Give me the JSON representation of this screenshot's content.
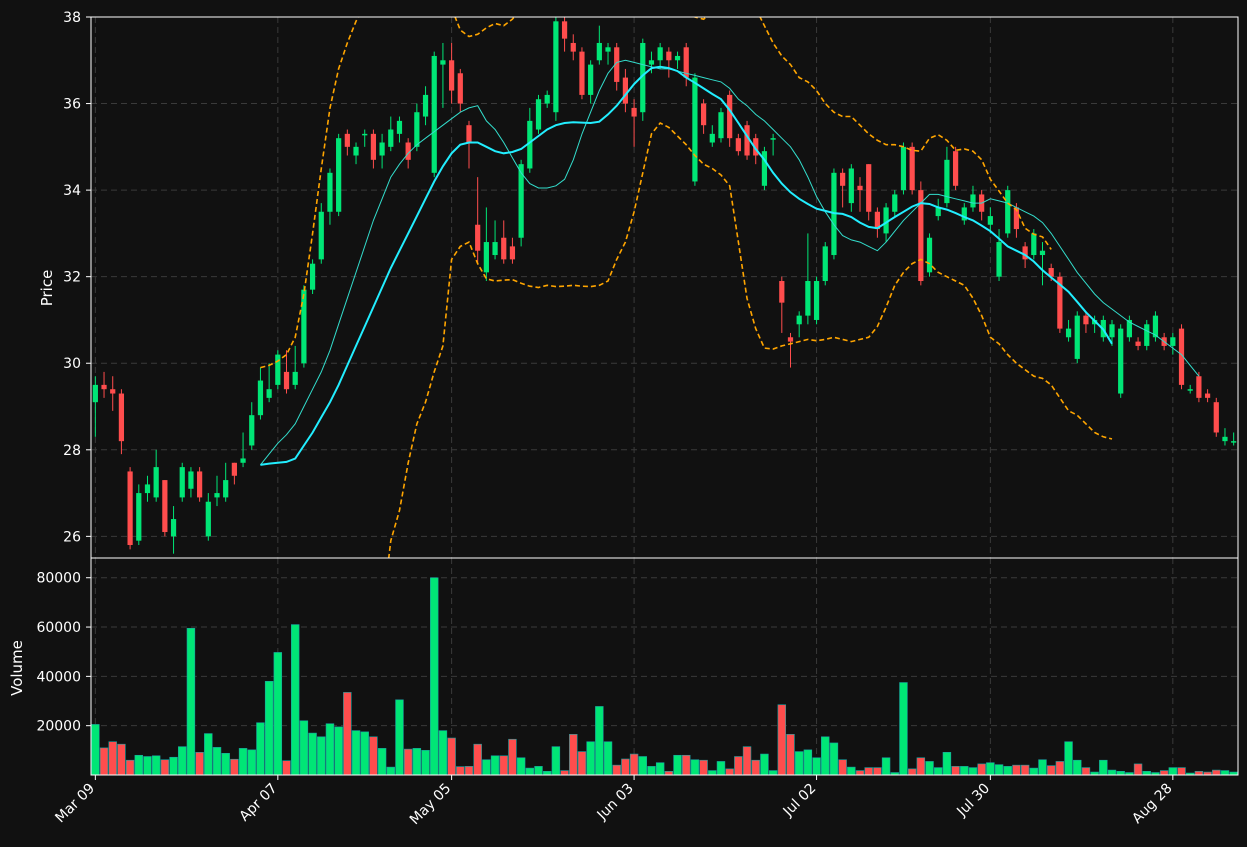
{
  "chart_data": {
    "type": "candlestick",
    "price_panel": {
      "ylabel": "Price",
      "ylim": [
        25.5,
        38.0
      ],
      "yticks": [
        "26",
        "28",
        "30",
        "32",
        "34",
        "36",
        "38"
      ],
      "grid": true
    },
    "volume_panel": {
      "ylabel": "Volume",
      "ylim": [
        0,
        88000
      ],
      "yticks": [
        "20000",
        "40000",
        "60000",
        "80000"
      ],
      "grid": true
    },
    "x_tick_labels": [
      "Mar 09",
      "Apr 07",
      "May 05",
      "Jun 03",
      "Jul 02",
      "Jul 30",
      "Aug 28"
    ],
    "x_tick_positions": [
      0,
      21,
      41,
      62,
      83,
      103,
      124
    ],
    "n_bars": 132,
    "colors": {
      "up": "#00e676",
      "down": "#ff4d4d",
      "sma_fast": "#33ddcc",
      "sma_slow": "#22eeff",
      "bands": "#ffa500",
      "grid": "#3a3a3a",
      "axis": "#ffffff",
      "background": "#111111"
    },
    "candles": [
      [
        29.1,
        29.5,
        29.7,
        28.3,
        20500
      ],
      [
        29.5,
        29.4,
        29.8,
        29.2,
        11000
      ],
      [
        29.4,
        29.3,
        29.7,
        28.9,
        13500
      ],
      [
        29.3,
        28.2,
        29.4,
        27.9,
        12500
      ],
      [
        27.5,
        25.8,
        27.6,
        25.7,
        6000
      ],
      [
        25.9,
        27.0,
        27.2,
        25.8,
        8000
      ],
      [
        27.0,
        27.2,
        27.4,
        26.8,
        7500
      ],
      [
        26.9,
        27.6,
        28.0,
        26.8,
        7800
      ],
      [
        27.3,
        26.1,
        27.3,
        26.0,
        6200
      ],
      [
        26.0,
        26.4,
        26.7,
        25.6,
        7200
      ],
      [
        26.9,
        27.6,
        27.7,
        26.8,
        11500
      ],
      [
        27.1,
        27.5,
        27.6,
        26.9,
        59500
      ],
      [
        27.5,
        26.9,
        27.6,
        26.8,
        9200
      ],
      [
        26.0,
        26.8,
        27.0,
        25.9,
        16800
      ],
      [
        26.9,
        27.0,
        27.4,
        26.7,
        11200
      ],
      [
        26.9,
        27.3,
        27.7,
        26.8,
        8800
      ],
      [
        27.7,
        27.4,
        27.7,
        27.2,
        6400
      ],
      [
        27.7,
        27.8,
        28.4,
        27.6,
        10800
      ],
      [
        28.1,
        28.8,
        29.1,
        28.0,
        10200
      ],
      [
        28.8,
        29.6,
        29.9,
        28.7,
        21200
      ],
      [
        29.2,
        29.4,
        30.0,
        29.1,
        38000
      ],
      [
        29.5,
        30.2,
        30.3,
        29.4,
        49700
      ],
      [
        29.8,
        29.4,
        30.3,
        29.3,
        5800
      ],
      [
        29.5,
        29.8,
        30.4,
        29.4,
        61000
      ],
      [
        30.0,
        31.7,
        31.8,
        29.9,
        22000
      ],
      [
        31.7,
        32.3,
        32.4,
        31.6,
        17000
      ],
      [
        32.4,
        33.5,
        33.7,
        32.3,
        15500
      ],
      [
        33.5,
        34.4,
        34.5,
        33.2,
        20800
      ],
      [
        33.5,
        35.2,
        35.3,
        33.4,
        19500
      ],
      [
        35.3,
        35.0,
        35.4,
        34.8,
        33500
      ],
      [
        34.8,
        35.0,
        35.1,
        34.6,
        18000
      ],
      [
        35.3,
        35.3,
        35.4,
        35.0,
        17500
      ],
      [
        35.3,
        34.7,
        35.4,
        34.5,
        15500
      ],
      [
        34.8,
        35.1,
        35.3,
        34.5,
        10800
      ],
      [
        35.0,
        35.4,
        35.7,
        34.9,
        3200
      ],
      [
        35.3,
        35.6,
        35.7,
        35.1,
        30500
      ],
      [
        35.1,
        34.7,
        35.2,
        34.5,
        10500
      ],
      [
        35.0,
        35.8,
        36.0,
        34.9,
        10800
      ],
      [
        35.7,
        36.2,
        36.4,
        35.5,
        10000
      ],
      [
        34.4,
        37.1,
        37.2,
        34.3,
        80000
      ],
      [
        36.9,
        37.0,
        37.4,
        35.9,
        18000
      ],
      [
        37.0,
        36.3,
        37.4,
        36.0,
        15000
      ],
      [
        36.7,
        36.0,
        36.8,
        35.8,
        3400
      ],
      [
        35.5,
        35.1,
        35.6,
        34.5,
        3500
      ],
      [
        33.2,
        32.6,
        34.3,
        32.3,
        12500
      ],
      [
        32.1,
        32.8,
        33.6,
        31.9,
        6200
      ],
      [
        32.5,
        32.8,
        33.3,
        32.4,
        7800
      ],
      [
        32.9,
        32.4,
        33.3,
        32.3,
        7800
      ],
      [
        32.7,
        32.4,
        32.9,
        32.3,
        14500
      ],
      [
        32.9,
        34.6,
        34.7,
        32.7,
        7000
      ],
      [
        34.5,
        35.6,
        35.9,
        34.4,
        2800
      ],
      [
        35.4,
        36.1,
        36.2,
        35.3,
        3500
      ],
      [
        36.0,
        36.2,
        36.3,
        35.9,
        1500
      ],
      [
        35.8,
        37.9,
        38.0,
        35.6,
        11500
      ],
      [
        37.9,
        37.5,
        38.0,
        37.2,
        1800
      ],
      [
        37.4,
        37.2,
        37.6,
        37.0,
        16500
      ],
      [
        37.2,
        36.2,
        37.3,
        36.1,
        9500
      ],
      [
        36.2,
        36.9,
        37.0,
        36.0,
        13500
      ],
      [
        37.0,
        37.4,
        37.8,
        36.9,
        27800
      ],
      [
        37.2,
        37.3,
        37.4,
        36.9,
        13500
      ],
      [
        37.3,
        36.5,
        37.4,
        36.3,
        4000
      ],
      [
        36.6,
        36.0,
        36.8,
        35.8,
        6500
      ],
      [
        35.9,
        35.7,
        36.1,
        35.0,
        8500
      ],
      [
        35.8,
        37.4,
        37.5,
        35.6,
        7500
      ],
      [
        36.9,
        37.0,
        37.2,
        36.7,
        3500
      ],
      [
        37.0,
        37.3,
        37.4,
        36.8,
        5000
      ],
      [
        37.2,
        37.0,
        37.3,
        36.6,
        1500
      ],
      [
        37.0,
        37.1,
        37.2,
        36.8,
        8000
      ],
      [
        37.3,
        36.6,
        37.4,
        36.4,
        8000
      ],
      [
        34.2,
        36.6,
        36.7,
        34.1,
        6200
      ],
      [
        36.0,
        35.5,
        36.1,
        35.3,
        6000
      ],
      [
        35.1,
        35.3,
        35.5,
        35.0,
        1800
      ],
      [
        35.2,
        35.8,
        35.9,
        35.1,
        5500
      ],
      [
        36.2,
        35.2,
        36.3,
        35.0,
        2500
      ],
      [
        35.2,
        34.9,
        35.3,
        34.8,
        7500
      ],
      [
        35.5,
        34.8,
        35.6,
        34.7,
        11500
      ],
      [
        35.2,
        34.8,
        35.3,
        34.6,
        6000
      ],
      [
        34.1,
        34.9,
        35.0,
        34.0,
        8500
      ],
      [
        35.2,
        35.2,
        35.3,
        34.8,
        1800
      ],
      [
        31.9,
        31.4,
        32.0,
        30.7,
        28500
      ],
      [
        30.6,
        30.5,
        30.7,
        29.9,
        16500
      ],
      [
        30.9,
        31.1,
        31.2,
        30.6,
        9500
      ],
      [
        31.1,
        31.9,
        33.0,
        30.9,
        10200
      ],
      [
        31.0,
        31.9,
        32.0,
        30.9,
        7000
      ],
      [
        31.9,
        32.7,
        32.8,
        31.8,
        15500
      ],
      [
        32.5,
        34.4,
        34.5,
        32.4,
        13000
      ],
      [
        34.4,
        34.1,
        34.5,
        33.6,
        6200
      ],
      [
        33.7,
        34.5,
        34.6,
        33.5,
        3200
      ],
      [
        34.1,
        34.0,
        34.3,
        33.5,
        1800
      ],
      [
        34.6,
        33.5,
        34.6,
        33.3,
        3000
      ],
      [
        33.5,
        33.1,
        33.6,
        32.9,
        3000
      ],
      [
        33.0,
        33.6,
        33.7,
        32.8,
        7000
      ],
      [
        33.5,
        33.9,
        34.0,
        33.4,
        1000
      ],
      [
        34.0,
        35.0,
        35.1,
        33.9,
        37500
      ],
      [
        35.0,
        34.0,
        35.1,
        33.9,
        2500
      ],
      [
        34.0,
        31.9,
        34.2,
        31.8,
        7000
      ],
      [
        32.1,
        32.9,
        33.0,
        32.0,
        5500
      ],
      [
        33.4,
        33.6,
        33.8,
        33.3,
        3000
      ],
      [
        33.7,
        34.7,
        35.0,
        33.6,
        9200
      ],
      [
        34.9,
        34.1,
        35.0,
        34.0,
        3500
      ],
      [
        33.3,
        33.6,
        33.7,
        33.2,
        3500
      ],
      [
        33.6,
        33.9,
        34.1,
        33.5,
        3000
      ],
      [
        33.9,
        33.5,
        34.0,
        33.3,
        4500
      ],
      [
        33.2,
        33.4,
        33.6,
        33.0,
        5000
      ],
      [
        32.0,
        32.8,
        33.1,
        31.9,
        4200
      ],
      [
        33.0,
        34.0,
        34.1,
        32.9,
        3500
      ],
      [
        33.6,
        33.1,
        33.7,
        32.9,
        4000
      ],
      [
        32.7,
        32.4,
        32.8,
        32.2,
        4000
      ],
      [
        32.5,
        33.0,
        33.1,
        32.4,
        2800
      ],
      [
        32.5,
        32.6,
        32.8,
        31.8,
        6200
      ],
      [
        32.2,
        32.0,
        32.3,
        31.9,
        3800
      ],
      [
        32.0,
        30.8,
        32.1,
        30.7,
        5500
      ],
      [
        30.6,
        30.8,
        31.0,
        30.5,
        13500
      ],
      [
        30.1,
        31.1,
        31.2,
        30.0,
        6000
      ],
      [
        31.1,
        30.9,
        31.2,
        30.7,
        3000
      ],
      [
        30.9,
        31.0,
        31.1,
        30.7,
        1200
      ],
      [
        30.6,
        31.0,
        31.1,
        30.5,
        6000
      ],
      [
        30.6,
        30.9,
        31.0,
        30.4,
        2000
      ],
      [
        29.3,
        30.8,
        30.9,
        29.2,
        1500
      ],
      [
        30.6,
        31.0,
        31.1,
        30.5,
        1000
      ],
      [
        30.5,
        30.4,
        30.6,
        30.3,
        4500
      ],
      [
        30.4,
        30.9,
        31.0,
        30.3,
        1500
      ],
      [
        30.6,
        31.1,
        31.2,
        30.5,
        1000
      ],
      [
        30.6,
        30.4,
        30.7,
        30.3,
        1800
      ],
      [
        30.4,
        30.6,
        30.7,
        30.2,
        3000
      ],
      [
        30.8,
        29.5,
        30.9,
        29.4,
        3000
      ],
      [
        29.4,
        29.4,
        29.5,
        29.3,
        800
      ],
      [
        29.7,
        29.2,
        29.8,
        29.1,
        1500
      ],
      [
        29.3,
        29.2,
        29.4,
        29.1,
        1200
      ],
      [
        29.1,
        28.4,
        29.2,
        28.3,
        2000
      ],
      [
        28.2,
        28.3,
        28.5,
        28.1,
        1800
      ],
      [
        28.2,
        28.2,
        28.4,
        28.1,
        1200
      ]
    ],
    "overlays": [
      {
        "role": "sma_fast",
        "start": 19,
        "values": [
          27.65,
          27.9,
          28.15,
          28.35,
          28.6,
          29.0,
          29.4,
          29.8,
          30.3,
          30.9,
          31.5,
          32.1,
          32.7,
          33.3,
          33.8,
          34.3,
          34.6,
          34.85,
          35.05,
          35.2,
          35.35,
          35.5,
          35.65,
          35.8,
          35.9,
          35.95,
          35.6,
          35.4,
          35.1,
          34.75,
          34.4,
          34.15,
          34.05,
          34.05,
          34.1,
          34.25,
          34.7,
          35.3,
          35.8,
          36.3,
          36.7,
          36.95,
          37.0,
          36.95,
          36.9,
          36.85,
          36.8,
          36.8,
          36.75,
          36.7,
          36.65,
          36.6,
          36.55,
          36.5,
          36.35,
          36.1,
          35.95,
          35.75,
          35.6,
          35.4,
          35.2,
          35.0,
          34.7,
          34.3,
          33.85,
          33.5,
          33.2,
          32.95,
          32.85,
          32.8,
          32.7,
          32.6,
          32.8,
          33.05,
          33.3,
          33.5,
          33.7,
          33.9,
          33.9,
          33.85,
          33.8,
          33.75,
          33.7,
          33.7,
          33.8,
          33.75,
          33.7,
          33.6,
          33.5,
          33.4,
          33.25,
          33.0,
          32.7,
          32.4,
          32.1,
          31.85,
          31.6,
          31.4,
          31.25,
          31.1,
          30.95,
          30.85,
          30.75,
          30.65,
          30.5,
          30.35,
          30.2,
          29.95,
          29.7
        ]
      },
      {
        "role": "sma_slow",
        "start": 19,
        "values": [
          27.65,
          27.68,
          27.7,
          27.72,
          27.8,
          28.1,
          28.4,
          28.75,
          29.1,
          29.5,
          29.95,
          30.4,
          30.85,
          31.3,
          31.75,
          32.2,
          32.6,
          33.0,
          33.4,
          33.8,
          34.2,
          34.55,
          34.85,
          35.05,
          35.1,
          35.1,
          35.0,
          34.9,
          34.85,
          34.88,
          34.95,
          35.1,
          35.25,
          35.4,
          35.5,
          35.55,
          35.57,
          35.56,
          35.55,
          35.58,
          35.75,
          35.95,
          36.2,
          36.45,
          36.65,
          36.82,
          36.85,
          36.82,
          36.75,
          36.6,
          36.48,
          36.35,
          36.22,
          36.1,
          35.85,
          35.55,
          35.25,
          34.95,
          34.7,
          34.4,
          34.15,
          33.95,
          33.8,
          33.68,
          33.57,
          33.52,
          33.47,
          33.45,
          33.38,
          33.25,
          33.15,
          33.12,
          33.25,
          33.38,
          33.5,
          33.62,
          33.7,
          33.68,
          33.6,
          33.55,
          33.47,
          33.38,
          33.3,
          33.18,
          33.05,
          32.88,
          32.7,
          32.6,
          32.5,
          32.35,
          32.15,
          31.98,
          31.82,
          31.65,
          31.42,
          31.18,
          30.98,
          30.78,
          30.45
        ]
      },
      {
        "role": "band_upper",
        "start": 19,
        "values": [
          29.9,
          29.95,
          30.05,
          30.2,
          30.6,
          31.6,
          33.0,
          34.5,
          35.9,
          36.8,
          37.4,
          37.9,
          38.3,
          38.7,
          39.0,
          39.2,
          39.4,
          39.3,
          39.2,
          39.1,
          38.9,
          38.7,
          38.2,
          37.7,
          37.55,
          37.6,
          37.75,
          37.85,
          37.8,
          37.95,
          38.2,
          38.5,
          38.8,
          39.1,
          39.3,
          39.4,
          39.5,
          39.6,
          39.6,
          39.6,
          39.5,
          39.4,
          39.2,
          39.0,
          38.8,
          38.6,
          38.4,
          38.3,
          38.2,
          38.1,
          38.0,
          37.95,
          38.1,
          38.4,
          38.6,
          38.7,
          38.5,
          38.2,
          37.8,
          37.4,
          37.1,
          36.9,
          36.6,
          36.5,
          36.3,
          36.0,
          35.8,
          35.7,
          35.7,
          35.5,
          35.3,
          35.15,
          35.05,
          35.05,
          35.0,
          34.92,
          34.9,
          35.2,
          35.28,
          35.15,
          34.92,
          34.95,
          34.9,
          34.7,
          34.25,
          33.98,
          33.7,
          33.55,
          33.12,
          32.98,
          32.92,
          32.63
        ]
      },
      {
        "role": "band_lower",
        "start": 19,
        "values": [
          23.0,
          22.7,
          22.5,
          22.2,
          21.8,
          21.5,
          21.2,
          21.0,
          20.8,
          20.6,
          20.5,
          20.5,
          21.0,
          22.5,
          24.2,
          25.9,
          26.6,
          27.7,
          28.6,
          29.1,
          29.8,
          30.4,
          32.4,
          32.7,
          32.8,
          32.3,
          31.95,
          31.9,
          31.92,
          31.93,
          31.85,
          31.78,
          31.75,
          31.8,
          31.77,
          31.78,
          31.8,
          31.78,
          31.77,
          31.8,
          31.9,
          32.4,
          32.8,
          33.5,
          34.4,
          35.3,
          35.55,
          35.45,
          35.25,
          35.05,
          34.8,
          34.6,
          34.5,
          34.35,
          34.1,
          32.8,
          31.5,
          30.8,
          30.35,
          30.33,
          30.4,
          30.45,
          30.5,
          30.55,
          30.52,
          30.55,
          30.6,
          30.55,
          30.5,
          30.55,
          30.6,
          30.85,
          31.3,
          31.8,
          32.1,
          32.3,
          32.4,
          32.3,
          32.1,
          32.0,
          31.9,
          31.8,
          31.5,
          31.1,
          30.6,
          30.45,
          30.2,
          30.0,
          29.85,
          29.7,
          29.65,
          29.5,
          29.2,
          28.9,
          28.8,
          28.6,
          28.4,
          28.3,
          28.25
        ]
      }
    ]
  }
}
